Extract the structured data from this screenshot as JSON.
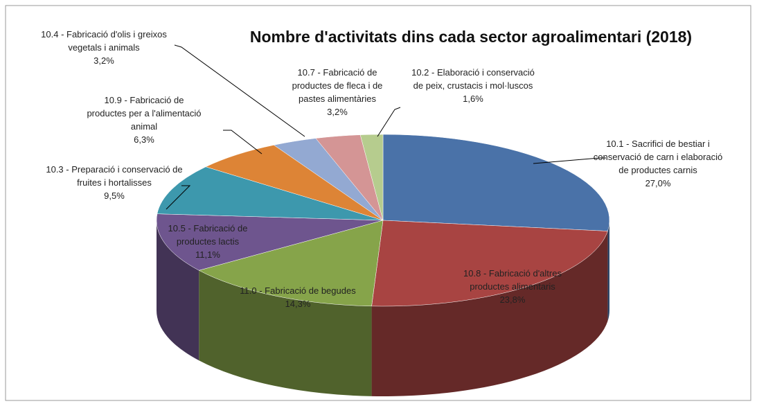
{
  "chart_data": {
    "type": "pie3d",
    "title": "Nombre d'activitats dins cada sector agroalimentari (2018)",
    "categories": [
      "10.1 - Sacrifici de bestiar i conservació de carn i elaboració de productes carnis",
      "10.8 - Fabricació d'altres productes alimentaris",
      "11.0 - Fabricació de begudes",
      "10.5 - Fabricació de productes lactis",
      "10.3 - Preparació i conservació de fruites i hortalisses",
      "10.9 - Fabricació de productes per a l'alimentació animal",
      "10.4 - Fabricació d'olis i greixos vegetals i animals",
      "10.7 - Fabricació de productes de fleca i de pastes alimentàries",
      "10.2 - Elaboració i conservació de peix, crustacis i mol·luscos"
    ],
    "values": [
      27.0,
      23.8,
      14.3,
      11.1,
      9.5,
      6.3,
      3.2,
      3.2,
      1.6
    ],
    "value_labels": [
      "27,0%",
      "23,8%",
      "14,3%",
      "11,1%",
      "9,5%",
      "6,3%",
      "3,2%",
      "3,2%",
      "1,6%"
    ],
    "colors": [
      "#4a72a8",
      "#a84442",
      "#86a44a",
      "#6e558e",
      "#3d98ad",
      "#dd8436",
      "#93a9d2",
      "#d49595",
      "#b6cc8e"
    ]
  }
}
